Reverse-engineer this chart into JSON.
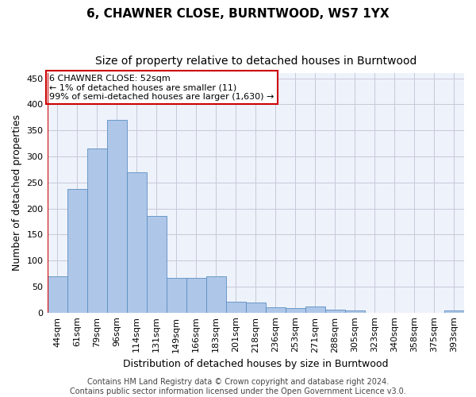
{
  "title": "6, CHAWNER CLOSE, BURNTWOOD, WS7 1YX",
  "subtitle": "Size of property relative to detached houses in Burntwood",
  "xlabel": "Distribution of detached houses by size in Burntwood",
  "ylabel": "Number of detached properties",
  "categories": [
    "44sqm",
    "61sqm",
    "79sqm",
    "96sqm",
    "114sqm",
    "131sqm",
    "149sqm",
    "166sqm",
    "183sqm",
    "201sqm",
    "218sqm",
    "236sqm",
    "253sqm",
    "271sqm",
    "288sqm",
    "305sqm",
    "323sqm",
    "340sqm",
    "358sqm",
    "375sqm",
    "393sqm"
  ],
  "values": [
    70,
    237,
    315,
    370,
    270,
    185,
    67,
    67,
    70,
    21,
    19,
    10,
    9,
    11,
    5,
    4,
    0,
    0,
    0,
    0,
    4
  ],
  "bar_color": "#aec6e8",
  "bar_edge_color": "#5a8fc2",
  "annotation_box_text": "6 CHAWNER CLOSE: 52sqm\n← 1% of detached houses are smaller (11)\n99% of semi-detached houses are larger (1,630) →",
  "vline_color": "#cc0000",
  "box_color": "#cc0000",
  "footer": "Contains HM Land Registry data © Crown copyright and database right 2024.\nContains public sector information licensed under the Open Government Licence v3.0.",
  "ylim": [
    0,
    460
  ],
  "yticks": [
    0,
    50,
    100,
    150,
    200,
    250,
    300,
    350,
    400,
    450
  ],
  "background_color": "#eef2fb",
  "grid_color": "#c8c8d8",
  "title_fontsize": 11,
  "subtitle_fontsize": 10,
  "axis_label_fontsize": 9,
  "tick_fontsize": 8,
  "footer_fontsize": 7
}
